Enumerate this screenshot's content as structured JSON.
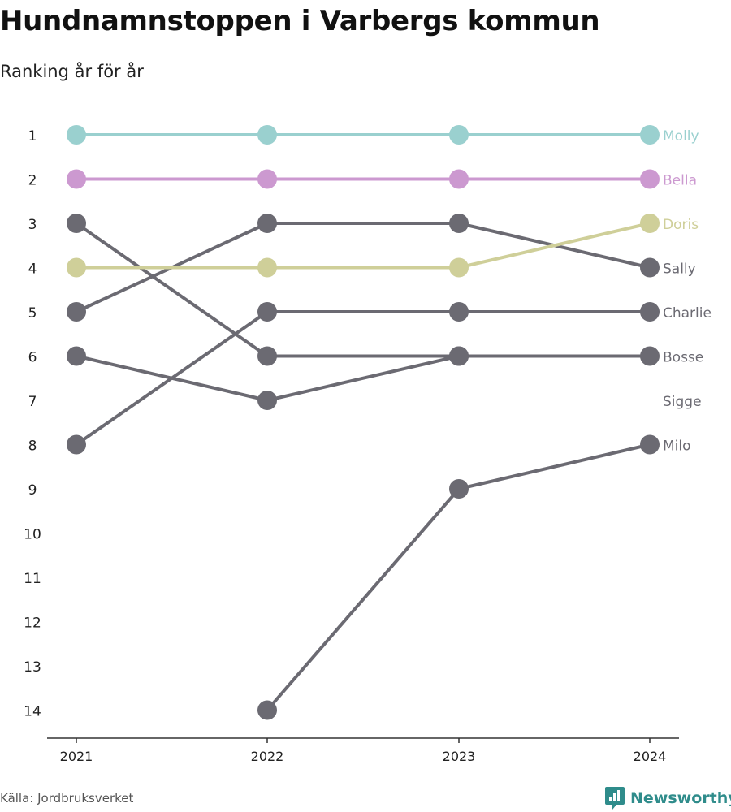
{
  "title": "Hundnamnstoppen i Varbergs kommun",
  "subtitle": "Ranking år för år",
  "source": "Källa: Jordbruksverket",
  "brand": "Newsworthy",
  "brand_icon": "bar-chart-badge-icon",
  "colors": {
    "teal": "#9ad0cf",
    "purple": "#cc99d0",
    "olive": "#cfcf99",
    "gray": "#6b6a72",
    "brand": "#2f8c8b",
    "axis": "#333333",
    "tick_text": "#222222"
  },
  "chart_data": {
    "type": "line",
    "x": [
      "2021",
      "2022",
      "2023",
      "2024"
    ],
    "y_ticks": [
      1,
      2,
      3,
      4,
      5,
      6,
      7,
      8,
      9,
      10,
      11,
      12,
      13,
      14
    ],
    "ylim": [
      1,
      14
    ],
    "y_reversed": true,
    "grid": false,
    "legend": "labels at line ends (right)",
    "series": [
      {
        "name": "Molly",
        "color": "#9ad0cf",
        "values": [
          1,
          1,
          1,
          1
        ]
      },
      {
        "name": "Bella",
        "color": "#cc99d0",
        "values": [
          2,
          2,
          2,
          2
        ]
      },
      {
        "name": "Doris",
        "color": "#cfcf99",
        "values": [
          4,
          4,
          4,
          3
        ]
      },
      {
        "name": "Sally",
        "color": "#6b6a72",
        "values": [
          5,
          3,
          3,
          4
        ]
      },
      {
        "name": "Charlie",
        "color": "#6b6a72",
        "values": [
          8,
          5,
          5,
          5
        ]
      },
      {
        "name": "Bosse",
        "color": "#6b6a72",
        "values": [
          3,
          6,
          6,
          6
        ]
      },
      {
        "name": "Sigge",
        "color": "#6b6a72",
        "values": [
          6,
          7,
          6,
          null
        ]
      },
      {
        "name": "Milo",
        "color": "#6b6a72",
        "values": [
          null,
          14,
          9,
          8
        ]
      }
    ],
    "end_labels": [
      {
        "text": "Molly",
        "rank": 1,
        "color": "#9ad0cf"
      },
      {
        "text": "Bella",
        "rank": 2,
        "color": "#cc99d0"
      },
      {
        "text": "Doris",
        "rank": 3,
        "color": "#cfcf99"
      },
      {
        "text": "Sally",
        "rank": 4,
        "color": "#6b6a72"
      },
      {
        "text": "Charlie",
        "rank": 5,
        "color": "#6b6a72"
      },
      {
        "text": "Bosse",
        "rank": 6,
        "color": "#6b6a72"
      },
      {
        "text": "Sigge",
        "rank": 7,
        "color": "#6b6a72"
      },
      {
        "text": "Milo",
        "rank": 8,
        "color": "#6b6a72"
      }
    ]
  }
}
